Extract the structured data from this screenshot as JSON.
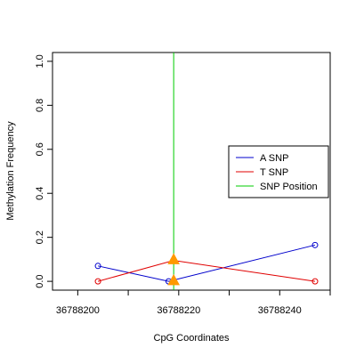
{
  "chart_data": {
    "type": "line",
    "title": "",
    "xlabel": "CpG Coordinates",
    "ylabel": "Methylation Frequency",
    "xlim": [
      36788195,
      36788250
    ],
    "ylim": [
      -0.04,
      1.04
    ],
    "x_ticks": [
      36788200,
      36788220,
      36788240
    ],
    "x_minor_ticks": [
      36788210,
      36788230,
      36788250
    ],
    "y_ticks": [
      0.0,
      0.2,
      0.4,
      0.6,
      0.8,
      1.0
    ],
    "y_tick_labels": [
      "0.0",
      "0.2",
      "0.4",
      "0.6",
      "0.8",
      "1.0"
    ],
    "grid": false,
    "legend_position": "right",
    "series": [
      {
        "name": "A SNP",
        "color": "#0000cc",
        "x": [
          36788204,
          36788218,
          36788247
        ],
        "y": [
          0.07,
          0.0,
          0.165
        ]
      },
      {
        "name": "T SNP",
        "color": "#e00000",
        "x": [
          36788204,
          36788219,
          36788247
        ],
        "y": [
          0.0,
          0.095,
          0.0
        ]
      }
    ],
    "snp_position": {
      "name": "SNP Position",
      "color": "#00cc00",
      "x": 36788219
    },
    "snp_markers": {
      "color": "#ff9900",
      "points": [
        [
          36788219,
          0.1
        ],
        [
          36788219,
          0.005
        ]
      ]
    },
    "legend": [
      {
        "label": "A SNP",
        "color": "#0000cc"
      },
      {
        "label": "T SNP",
        "color": "#e00000"
      },
      {
        "label": "SNP Position",
        "color": "#00cc00"
      }
    ]
  }
}
